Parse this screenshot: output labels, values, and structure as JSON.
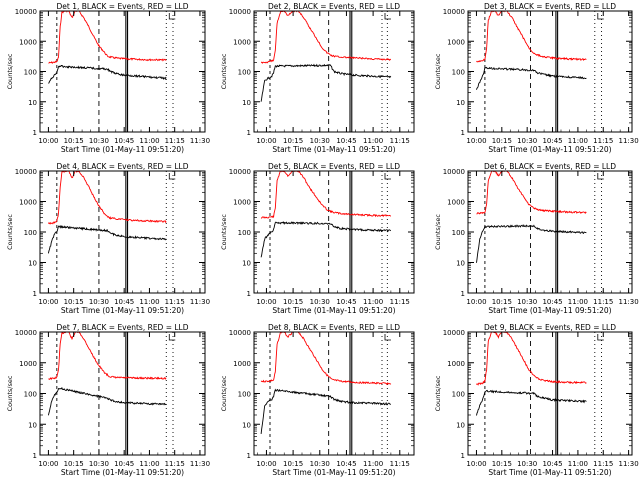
{
  "chart_data": {
    "type": "line",
    "grid": false,
    "y_scale": "log",
    "ylim": [
      1,
      10000
    ],
    "y_ticks": [
      1,
      10,
      100,
      1000,
      10000
    ],
    "y_tick_labels": [
      "1",
      "10",
      "100",
      "1000",
      "10000"
    ],
    "ylabel": "Counts/sec",
    "xlabel": "Start Time (01-May-11 09:51:20)",
    "x_tick_labels": [
      "10:00",
      "10:15",
      "10:30",
      "10:45",
      "11:00",
      "11:15",
      "11:30"
    ],
    "line_colors": {
      "events": "#000000",
      "lld": "#ff0000"
    },
    "panels": [
      {
        "title": "Det  1, BLACK = Events, RED = LLD",
        "red": [
          [
            "10:00",
            190
          ],
          [
            "10:03",
            200
          ],
          [
            "10:05",
            210
          ],
          [
            "10:06",
            300
          ],
          [
            "10:07",
            3000
          ],
          [
            "10:08",
            9000
          ],
          [
            "10:10",
            10000
          ],
          [
            "10:12",
            10000
          ],
          [
            "10:14",
            6000
          ],
          [
            "10:16",
            10000
          ],
          [
            "10:18",
            10000
          ],
          [
            "10:21",
            6000
          ],
          [
            "10:24",
            3000
          ],
          [
            "10:27",
            1400
          ],
          [
            "10:30",
            700
          ],
          [
            "10:33",
            450
          ],
          [
            "10:35",
            320
          ],
          [
            "10:38",
            290
          ],
          [
            "10:42",
            270
          ],
          [
            "10:47",
            260
          ],
          [
            "10:55",
            250
          ],
          [
            "11:00",
            245
          ],
          [
            "11:10",
            240
          ]
        ],
        "black": [
          [
            "10:00",
            40
          ],
          [
            "10:02",
            60
          ],
          [
            "10:03",
            70
          ],
          [
            "10:04",
            80
          ],
          [
            "10:05",
            90
          ],
          [
            "10:06",
            150
          ],
          [
            "10:35",
            120
          ],
          [
            "10:37",
            100
          ],
          [
            "10:40",
            85
          ],
          [
            "10:45",
            75
          ],
          [
            "10:55",
            70
          ],
          [
            "11:00",
            65
          ],
          [
            "11:10",
            60
          ]
        ]
      },
      {
        "title": "Det  2, BLACK = Events, RED = LLD",
        "red": [
          [
            "9:57",
            200
          ],
          [
            "10:00",
            200
          ],
          [
            "10:04",
            230
          ],
          [
            "10:05",
            500
          ],
          [
            "10:06",
            4000
          ],
          [
            "10:08",
            10000
          ],
          [
            "10:10",
            10000
          ],
          [
            "10:12",
            7000
          ],
          [
            "10:15",
            10000
          ],
          [
            "10:18",
            10000
          ],
          [
            "10:21",
            6000
          ],
          [
            "10:24",
            3000
          ],
          [
            "10:28",
            1300
          ],
          [
            "10:31",
            650
          ],
          [
            "10:34",
            420
          ],
          [
            "10:37",
            330
          ],
          [
            "10:42",
            300
          ],
          [
            "10:50",
            280
          ],
          [
            "11:00",
            260
          ],
          [
            "11:10",
            250
          ]
        ],
        "black": [
          [
            "9:57",
            10
          ],
          [
            "9:59",
            50
          ],
          [
            "10:01",
            60
          ],
          [
            "10:03",
            70
          ],
          [
            "10:04",
            90
          ],
          [
            "10:05",
            150
          ],
          [
            "10:36",
            160
          ],
          [
            "10:38",
            100
          ],
          [
            "10:42",
            85
          ],
          [
            "10:50",
            75
          ],
          [
            "11:00",
            70
          ],
          [
            "11:10",
            65
          ]
        ]
      },
      {
        "title": "Det  3, BLACK = Events, RED = LLD",
        "red": [
          [
            "10:00",
            210
          ],
          [
            "10:03",
            220
          ],
          [
            "10:05",
            260
          ],
          [
            "10:06",
            600
          ],
          [
            "10:07",
            5000
          ],
          [
            "10:09",
            10000
          ],
          [
            "10:11",
            10000
          ],
          [
            "10:13",
            7000
          ],
          [
            "10:15",
            10000
          ],
          [
            "10:18",
            10000
          ],
          [
            "10:21",
            6000
          ],
          [
            "10:24",
            3000
          ],
          [
            "10:28",
            1200
          ],
          [
            "10:31",
            600
          ],
          [
            "10:34",
            400
          ],
          [
            "10:38",
            320
          ],
          [
            "10:45",
            280
          ],
          [
            "10:55",
            260
          ],
          [
            "11:05",
            250
          ]
        ],
        "black": [
          [
            "10:00",
            25
          ],
          [
            "10:02",
            45
          ],
          [
            "10:03",
            60
          ],
          [
            "10:04",
            80
          ],
          [
            "10:05",
            130
          ],
          [
            "10:34",
            110
          ],
          [
            "10:36",
            90
          ],
          [
            "10:40",
            80
          ],
          [
            "10:45",
            70
          ],
          [
            "10:55",
            65
          ],
          [
            "11:05",
            60
          ]
        ]
      },
      {
        "title": "Det  4, BLACK = Events, RED = LLD",
        "red": [
          [
            "10:00",
            190
          ],
          [
            "10:03",
            200
          ],
          [
            "10:05",
            220
          ],
          [
            "10:06",
            400
          ],
          [
            "10:07",
            3000
          ],
          [
            "10:08",
            9000
          ],
          [
            "10:10",
            10000
          ],
          [
            "10:12",
            10000
          ],
          [
            "10:14",
            6000
          ],
          [
            "10:16",
            10000
          ],
          [
            "10:18",
            10000
          ],
          [
            "10:21",
            6000
          ],
          [
            "10:24",
            3000
          ],
          [
            "10:27",
            1400
          ],
          [
            "10:30",
            700
          ],
          [
            "10:33",
            420
          ],
          [
            "10:36",
            290
          ],
          [
            "10:40",
            270
          ],
          [
            "10:50",
            240
          ],
          [
            "11:00",
            230
          ],
          [
            "11:10",
            220
          ]
        ],
        "black": [
          [
            "10:00",
            20
          ],
          [
            "10:02",
            50
          ],
          [
            "10:03",
            70
          ],
          [
            "10:04",
            90
          ],
          [
            "10:05",
            100
          ],
          [
            "10:06",
            150
          ],
          [
            "10:35",
            110
          ],
          [
            "10:37",
            90
          ],
          [
            "10:40",
            80
          ],
          [
            "10:45",
            70
          ],
          [
            "10:55",
            65
          ],
          [
            "11:00",
            62
          ],
          [
            "11:10",
            58
          ]
        ]
      },
      {
        "title": "Det  5, BLACK = Events, RED = LLD",
        "red": [
          [
            "9:57",
            300
          ],
          [
            "10:00",
            300
          ],
          [
            "10:04",
            320
          ],
          [
            "10:05",
            600
          ],
          [
            "10:06",
            5000
          ],
          [
            "10:08",
            10000
          ],
          [
            "10:10",
            10000
          ],
          [
            "10:12",
            7000
          ],
          [
            "10:15",
            10000
          ],
          [
            "10:18",
            10000
          ],
          [
            "10:21",
            6000
          ],
          [
            "10:24",
            3000
          ],
          [
            "10:28",
            1400
          ],
          [
            "10:31",
            800
          ],
          [
            "10:34",
            550
          ],
          [
            "10:37",
            450
          ],
          [
            "10:42",
            400
          ],
          [
            "10:50",
            370
          ],
          [
            "11:00",
            350
          ],
          [
            "11:10",
            340
          ]
        ],
        "black": [
          [
            "9:57",
            15
          ],
          [
            "9:59",
            60
          ],
          [
            "10:01",
            80
          ],
          [
            "10:03",
            100
          ],
          [
            "10:04",
            120
          ],
          [
            "10:05",
            200
          ],
          [
            "10:36",
            190
          ],
          [
            "10:38",
            150
          ],
          [
            "10:42",
            130
          ],
          [
            "10:50",
            120
          ],
          [
            "11:00",
            115
          ],
          [
            "11:10",
            110
          ]
        ]
      },
      {
        "title": "Det  6, BLACK = Events, RED = LLD",
        "red": [
          [
            "10:00",
            400
          ],
          [
            "10:03",
            420
          ],
          [
            "10:05",
            450
          ],
          [
            "10:06",
            800
          ],
          [
            "10:07",
            5000
          ],
          [
            "10:09",
            10000
          ],
          [
            "10:11",
            10000
          ],
          [
            "10:13",
            7000
          ],
          [
            "10:15",
            10000
          ],
          [
            "10:18",
            10000
          ],
          [
            "10:21",
            6000
          ],
          [
            "10:24",
            3000
          ],
          [
            "10:28",
            1400
          ],
          [
            "10:31",
            800
          ],
          [
            "10:34",
            600
          ],
          [
            "10:38",
            520
          ],
          [
            "10:45",
            480
          ],
          [
            "10:55",
            450
          ],
          [
            "11:05",
            430
          ]
        ],
        "black": [
          [
            "10:00",
            10
          ],
          [
            "10:02",
            60
          ],
          [
            "10:03",
            90
          ],
          [
            "10:04",
            110
          ],
          [
            "10:05",
            150
          ],
          [
            "10:34",
            160
          ],
          [
            "10:36",
            130
          ],
          [
            "10:40",
            115
          ],
          [
            "10:45",
            105
          ],
          [
            "10:55",
            100
          ],
          [
            "11:05",
            95
          ]
        ]
      },
      {
        "title": "Det  7, BLACK = Events, RED = LLD",
        "red": [
          [
            "10:00",
            300
          ],
          [
            "10:03",
            310
          ],
          [
            "10:05",
            330
          ],
          [
            "10:06",
            600
          ],
          [
            "10:07",
            4000
          ],
          [
            "10:08",
            9000
          ],
          [
            "10:10",
            10000
          ],
          [
            "10:12",
            10000
          ],
          [
            "10:14",
            6000
          ],
          [
            "10:16",
            10000
          ],
          [
            "10:18",
            10000
          ],
          [
            "10:21",
            6000
          ],
          [
            "10:24",
            3000
          ],
          [
            "10:27",
            1500
          ],
          [
            "10:30",
            800
          ],
          [
            "10:33",
            500
          ],
          [
            "10:36",
            360
          ],
          [
            "10:40",
            330
          ],
          [
            "10:50",
            320
          ],
          [
            "11:00",
            315
          ],
          [
            "11:10",
            310
          ]
        ],
        "black": [
          [
            "10:00",
            20
          ],
          [
            "10:02",
            60
          ],
          [
            "10:03",
            80
          ],
          [
            "10:04",
            95
          ],
          [
            "10:05",
            110
          ],
          [
            "10:06",
            150
          ],
          [
            "10:35",
            70
          ],
          [
            "10:37",
            60
          ],
          [
            "10:40",
            55
          ],
          [
            "10:45",
            50
          ],
          [
            "10:55",
            48
          ],
          [
            "11:00",
            46
          ],
          [
            "11:10",
            45
          ]
        ]
      },
      {
        "title": "Det  8, BLACK = Events, RED = LLD",
        "red": [
          [
            "9:57",
            250
          ],
          [
            "10:00",
            250
          ],
          [
            "10:04",
            270
          ],
          [
            "10:05",
            500
          ],
          [
            "10:06",
            4000
          ],
          [
            "10:08",
            10000
          ],
          [
            "10:10",
            10000
          ],
          [
            "10:12",
            7000
          ],
          [
            "10:15",
            10000
          ],
          [
            "10:18",
            10000
          ],
          [
            "10:21",
            6000
          ],
          [
            "10:24",
            3000
          ],
          [
            "10:28",
            1300
          ],
          [
            "10:31",
            650
          ],
          [
            "10:34",
            400
          ],
          [
            "10:37",
            280
          ],
          [
            "10:42",
            250
          ],
          [
            "10:50",
            230
          ],
          [
            "11:00",
            220
          ],
          [
            "11:10",
            210
          ]
        ],
        "black": [
          [
            "9:57",
            5
          ],
          [
            "9:59",
            40
          ],
          [
            "10:01",
            55
          ],
          [
            "10:03",
            65
          ],
          [
            "10:04",
            80
          ],
          [
            "10:05",
            130
          ],
          [
            "10:36",
            80
          ],
          [
            "10:38",
            65
          ],
          [
            "10:42",
            55
          ],
          [
            "10:50",
            50
          ],
          [
            "11:00",
            48
          ],
          [
            "11:10",
            45
          ]
        ]
      },
      {
        "title": "Det  9, BLACK = Events, RED = LLD",
        "red": [
          [
            "10:00",
            200
          ],
          [
            "10:03",
            210
          ],
          [
            "10:05",
            250
          ],
          [
            "10:06",
            600
          ],
          [
            "10:07",
            5000
          ],
          [
            "10:09",
            10000
          ],
          [
            "10:11",
            10000
          ],
          [
            "10:13",
            7000
          ],
          [
            "10:15",
            10000
          ],
          [
            "10:18",
            10000
          ],
          [
            "10:21",
            6000
          ],
          [
            "10:24",
            3000
          ],
          [
            "10:28",
            1200
          ],
          [
            "10:31",
            600
          ],
          [
            "10:34",
            380
          ],
          [
            "10:38",
            280
          ],
          [
            "10:45",
            240
          ],
          [
            "10:55",
            230
          ],
          [
            "11:05",
            225
          ]
        ],
        "black": [
          [
            "10:00",
            20
          ],
          [
            "10:02",
            40
          ],
          [
            "10:03",
            55
          ],
          [
            "10:04",
            70
          ],
          [
            "10:05",
            120
          ],
          [
            "10:34",
            100
          ],
          [
            "10:36",
            80
          ],
          [
            "10:40",
            70
          ],
          [
            "10:45",
            62
          ],
          [
            "10:55",
            58
          ],
          [
            "11:05",
            55
          ]
        ]
      }
    ]
  }
}
